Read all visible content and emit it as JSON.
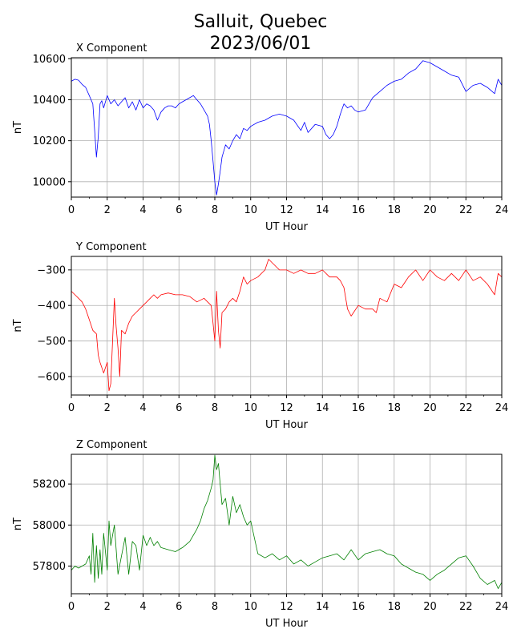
{
  "figure": {
    "title_line1": "Salluit, Quebec",
    "title_line2": "2023/06/01"
  },
  "chart_data": [
    {
      "type": "line",
      "title": "X Component",
      "xlabel": "UT Hour",
      "ylabel": "nT",
      "color": "#0000ff",
      "xlim": [
        0,
        24
      ],
      "ylim": [
        9925,
        10605
      ],
      "xticks": [
        0,
        2,
        4,
        6,
        8,
        10,
        12,
        14,
        16,
        18,
        20,
        22,
        24
      ],
      "yticks": [
        10000,
        10200,
        10400,
        10600
      ],
      "grid": true,
      "series": [
        {
          "x": [
            0,
            0.2,
            0.4,
            0.6,
            0.8,
            1.0,
            1.2,
            1.3,
            1.4,
            1.5,
            1.6,
            1.7,
            1.8,
            2.0,
            2.2,
            2.4,
            2.6,
            2.8,
            3.0,
            3.2,
            3.4,
            3.6,
            3.8,
            4.0,
            4.2,
            4.4,
            4.6,
            4.8,
            5.0,
            5.2,
            5.4,
            5.6,
            5.8,
            6.0,
            6.2,
            6.4,
            6.6,
            6.8,
            7.0,
            7.2,
            7.4,
            7.6,
            7.7,
            7.8,
            7.9,
            8.0,
            8.1,
            8.2,
            8.3,
            8.4,
            8.6,
            8.8,
            9.0,
            9.2,
            9.4,
            9.6,
            9.8,
            10.0,
            10.4,
            10.8,
            11.2,
            11.6,
            12.0,
            12.4,
            12.8,
            13.0,
            13.2,
            13.6,
            14.0,
            14.2,
            14.4,
            14.6,
            14.8,
            15.0,
            15.2,
            15.4,
            15.6,
            15.8,
            16.0,
            16.4,
            16.8,
            17.2,
            17.6,
            18.0,
            18.4,
            18.8,
            19.2,
            19.6,
            20.0,
            20.4,
            20.8,
            21.2,
            21.6,
            22.0,
            22.4,
            22.8,
            23.2,
            23.6,
            23.8,
            24.0
          ],
          "y": [
            10490,
            10500,
            10495,
            10475,
            10460,
            10420,
            10380,
            10250,
            10120,
            10220,
            10380,
            10395,
            10360,
            10420,
            10380,
            10400,
            10370,
            10390,
            10410,
            10360,
            10390,
            10350,
            10400,
            10360,
            10380,
            10370,
            10350,
            10300,
            10340,
            10360,
            10370,
            10370,
            10360,
            10380,
            10390,
            10400,
            10410,
            10420,
            10400,
            10380,
            10350,
            10320,
            10280,
            10200,
            10100,
            10000,
            9935,
            9990,
            10050,
            10120,
            10180,
            10160,
            10200,
            10230,
            10210,
            10260,
            10250,
            10270,
            10290,
            10300,
            10320,
            10330,
            10320,
            10300,
            10250,
            10290,
            10240,
            10280,
            10270,
            10230,
            10210,
            10230,
            10270,
            10330,
            10380,
            10360,
            10370,
            10350,
            10340,
            10350,
            10410,
            10440,
            10470,
            10490,
            10500,
            10530,
            10550,
            10590,
            10580,
            10560,
            10540,
            10520,
            10510,
            10440,
            10470,
            10480,
            10460,
            10430,
            10500,
            10470
          ]
        }
      ]
    },
    {
      "type": "line",
      "title": "Y Component",
      "xlabel": "UT Hour",
      "ylabel": "nT",
      "color": "#ff0000",
      "xlim": [
        0,
        24
      ],
      "ylim": [
        -652,
        -262
      ],
      "xticks": [
        0,
        2,
        4,
        6,
        8,
        10,
        12,
        14,
        16,
        18,
        20,
        22,
        24
      ],
      "yticks": [
        -600,
        -500,
        -400,
        -300
      ],
      "grid": true,
      "series": [
        {
          "x": [
            0,
            0.2,
            0.4,
            0.6,
            0.8,
            1.0,
            1.2,
            1.4,
            1.5,
            1.6,
            1.8,
            2.0,
            2.1,
            2.2,
            2.4,
            2.5,
            2.6,
            2.7,
            2.8,
            3.0,
            3.2,
            3.4,
            3.6,
            3.8,
            4.0,
            4.2,
            4.4,
            4.6,
            4.8,
            5.0,
            5.4,
            5.8,
            6.2,
            6.6,
            7.0,
            7.4,
            7.6,
            7.8,
            7.9,
            8.0,
            8.1,
            8.2,
            8.3,
            8.4,
            8.6,
            8.8,
            9.0,
            9.2,
            9.4,
            9.6,
            9.8,
            10.0,
            10.4,
            10.8,
            11.0,
            11.2,
            11.6,
            12.0,
            12.4,
            12.8,
            13.2,
            13.6,
            14.0,
            14.4,
            14.8,
            15.0,
            15.2,
            15.4,
            15.6,
            16.0,
            16.4,
            16.8,
            17.0,
            17.2,
            17.6,
            18.0,
            18.4,
            18.8,
            19.2,
            19.6,
            20.0,
            20.4,
            20.8,
            21.2,
            21.6,
            22.0,
            22.4,
            22.8,
            23.2,
            23.6,
            23.8,
            24.0
          ],
          "y": [
            -360,
            -370,
            -380,
            -390,
            -410,
            -440,
            -470,
            -480,
            -540,
            -560,
            -590,
            -560,
            -640,
            -620,
            -380,
            -460,
            -520,
            -600,
            -470,
            -480,
            -450,
            -430,
            -420,
            -410,
            -400,
            -390,
            -380,
            -370,
            -380,
            -370,
            -365,
            -370,
            -370,
            -375,
            -390,
            -380,
            -390,
            -400,
            -450,
            -500,
            -360,
            -470,
            -520,
            -420,
            -410,
            -390,
            -380,
            -390,
            -360,
            -320,
            -340,
            -330,
            -320,
            -300,
            -270,
            -280,
            -300,
            -300,
            -310,
            -300,
            -310,
            -310,
            -300,
            -320,
            -320,
            -330,
            -350,
            -410,
            -430,
            -400,
            -410,
            -410,
            -420,
            -380,
            -390,
            -340,
            -350,
            -320,
            -300,
            -330,
            -300,
            -320,
            -330,
            -310,
            -330,
            -300,
            -330,
            -320,
            -340,
            -370,
            -310,
            -320
          ]
        }
      ]
    },
    {
      "type": "line",
      "title": "Z Component",
      "xlabel": "UT Hour",
      "ylabel": "nT",
      "color": "#008000",
      "xlim": [
        0,
        24
      ],
      "ylim": [
        57665,
        58345
      ],
      "xticks": [
        0,
        2,
        4,
        6,
        8,
        10,
        12,
        14,
        16,
        18,
        20,
        22,
        24
      ],
      "yticks": [
        57800,
        58000,
        58200
      ],
      "grid": true,
      "series": [
        {
          "x": [
            0,
            0.2,
            0.4,
            0.6,
            0.8,
            1.0,
            1.1,
            1.2,
            1.3,
            1.4,
            1.5,
            1.6,
            1.7,
            1.8,
            2.0,
            2.1,
            2.2,
            2.4,
            2.6,
            2.8,
            3.0,
            3.2,
            3.4,
            3.6,
            3.8,
            4.0,
            4.2,
            4.4,
            4.6,
            4.8,
            5.0,
            5.4,
            5.8,
            6.2,
            6.6,
            7.0,
            7.2,
            7.4,
            7.6,
            7.8,
            7.9,
            8.0,
            8.1,
            8.2,
            8.3,
            8.4,
            8.6,
            8.8,
            9.0,
            9.2,
            9.4,
            9.6,
            9.8,
            10.0,
            10.2,
            10.4,
            10.8,
            11.2,
            11.6,
            12.0,
            12.4,
            12.8,
            13.2,
            13.6,
            14.0,
            14.4,
            14.8,
            15.2,
            15.6,
            16.0,
            16.4,
            16.8,
            17.2,
            17.6,
            18.0,
            18.4,
            18.8,
            19.2,
            19.6,
            20.0,
            20.4,
            20.8,
            21.2,
            21.6,
            22.0,
            22.4,
            22.8,
            23.2,
            23.6,
            23.8,
            24.0
          ],
          "y": [
            57780,
            57800,
            57790,
            57800,
            57810,
            57850,
            57760,
            57960,
            57720,
            57900,
            57740,
            57880,
            57760,
            57960,
            57780,
            58020,
            57900,
            58000,
            57760,
            57850,
            57940,
            57760,
            57920,
            57900,
            57780,
            57950,
            57900,
            57940,
            57900,
            57920,
            57890,
            57880,
            57870,
            57890,
            57920,
            57980,
            58020,
            58080,
            58120,
            58180,
            58220,
            58340,
            58270,
            58300,
            58200,
            58100,
            58130,
            58000,
            58140,
            58060,
            58100,
            58040,
            58000,
            58020,
            57940,
            57860,
            57840,
            57860,
            57830,
            57850,
            57810,
            57830,
            57800,
            57820,
            57840,
            57850,
            57860,
            57830,
            57880,
            57830,
            57860,
            57870,
            57880,
            57860,
            57850,
            57810,
            57790,
            57770,
            57760,
            57730,
            57760,
            57780,
            57810,
            57840,
            57850,
            57800,
            57740,
            57710,
            57730,
            57690,
            57720
          ]
        }
      ]
    }
  ]
}
